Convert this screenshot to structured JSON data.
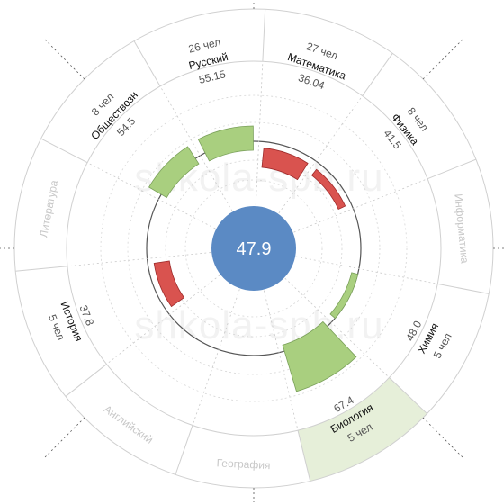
{
  "watermark": "shkola-spb.ru",
  "chart_data": {
    "type": "radial-bar",
    "center_value": "47.9",
    "segments": [
      {
        "subject": "Русский",
        "count": "26 чел",
        "score": "55.15",
        "value": 55.15,
        "active": true
      },
      {
        "subject": "Математика",
        "count": "27 чел",
        "score": "36.04",
        "value": 36.04,
        "active": true
      },
      {
        "subject": "Физика",
        "count": "8 чел",
        "score": "41.5",
        "value": 41.5,
        "active": true
      },
      {
        "subject": "Информатика",
        "count": "",
        "score": "",
        "value": null,
        "active": false
      },
      {
        "subject": "Химия",
        "count": "5 чел",
        "score": "48.0",
        "value": 48.0,
        "active": true
      },
      {
        "subject": "Биология",
        "count": "5 чел",
        "score": "67.4",
        "value": 67.4,
        "active": true,
        "highlighted": true
      },
      {
        "subject": "География",
        "count": "",
        "score": "",
        "value": null,
        "active": false
      },
      {
        "subject": "Английский",
        "count": "",
        "score": "",
        "value": null,
        "active": false
      },
      {
        "subject": "История",
        "count": "5 чел",
        "score": "37.8",
        "value": 37.8,
        "active": true
      },
      {
        "subject": "Литература",
        "count": "",
        "score": "",
        "value": null,
        "active": false
      },
      {
        "subject": "Обществозн",
        "count": "8 чел",
        "score": "54.5",
        "value": 54.5,
        "active": true
      }
    ],
    "reference_value": 47.9,
    "colors": {
      "below": "#d9534f",
      "above": "#a9cf7f",
      "highlight_sector": "#e6efd9",
      "center": "#5b8ac4"
    }
  }
}
